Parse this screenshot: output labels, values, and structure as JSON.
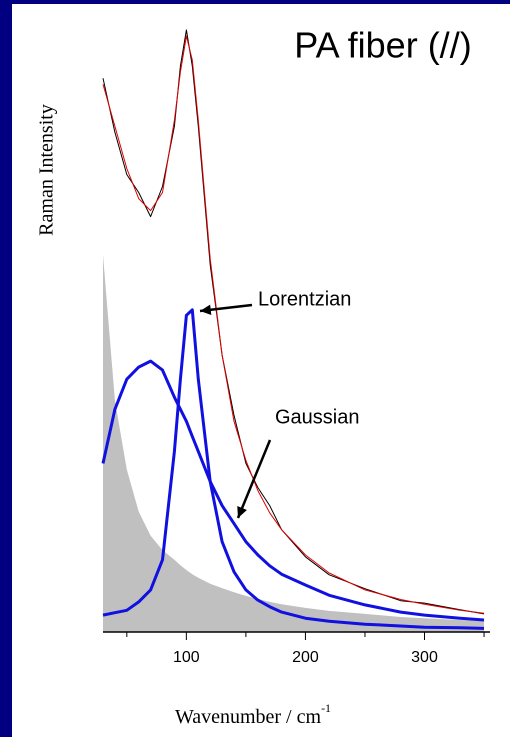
{
  "chart_data": {
    "type": "line",
    "title": "PA fiber (//)",
    "ylabel": "Raman Intensity",
    "xlabel": "Wavenumber / cm",
    "xlabel_superscript": "-1",
    "x": [
      30,
      40,
      50,
      60,
      70,
      80,
      90,
      95,
      100,
      105,
      110,
      120,
      130,
      140,
      150,
      160,
      170,
      180,
      200,
      220,
      250,
      280,
      300,
      330,
      350
    ],
    "series": [
      {
        "color": "#c0c0c0",
        "fill": true,
        "width": 0,
        "values": [
          62.6,
          38.5,
          27,
          20,
          16,
          13.6,
          12,
          11.1,
          10.3,
          9.6,
          9,
          8,
          7.3,
          6.6,
          6,
          5.5,
          5,
          4.6,
          4,
          3.5,
          3,
          2.5,
          2.3,
          2,
          1.8
        ]
      },
      {
        "color": "#000000",
        "fill": false,
        "width": 1,
        "values": [
          92,
          83,
          76,
          73,
          69,
          74,
          84,
          94,
          100,
          94,
          84,
          61,
          46,
          36,
          28,
          24,
          21,
          17,
          12.5,
          9.5,
          7.2,
          5.2,
          4.8,
          3.7,
          3.0
        ]
      },
      {
        "color": "#e00000",
        "fill": false,
        "width": 1,
        "values": [
          91,
          84,
          77,
          72,
          70,
          73,
          85,
          93,
          99,
          95,
          85,
          62,
          46,
          35,
          28.5,
          23.5,
          19.8,
          17,
          12.8,
          9.8,
          7,
          5.4,
          4.6,
          3.6,
          3.1
        ]
      },
      {
        "color": "#1010e0",
        "fill": false,
        "width": 3,
        "values": [
          2.8,
          3.2,
          3.6,
          5,
          7,
          12,
          30,
          42,
          52.6,
          53.5,
          42,
          25,
          15,
          10,
          7,
          5.3,
          4.2,
          3.3,
          2.3,
          1.8,
          1.3,
          1,
          0.8,
          0.7,
          0.6
        ]
      },
      {
        "color": "#1010e0",
        "fill": false,
        "width": 3,
        "values": [
          28,
          37,
          42,
          44,
          45,
          43.5,
          39,
          37,
          35,
          32.5,
          30,
          25,
          21,
          18,
          15,
          12.8,
          11,
          9.6,
          7.8,
          6.1,
          4.5,
          3.3,
          2.8,
          2.3,
          2
        ]
      }
    ],
    "annotations": [
      {
        "text": "Lorentzian"
      },
      {
        "text": "Gaussian"
      }
    ],
    "xlim": [
      30,
      355
    ],
    "ylim": [
      0,
      100
    ],
    "xticks": [
      100,
      200,
      300
    ],
    "xminor_ticks": [
      50,
      150,
      250,
      350
    ]
  }
}
